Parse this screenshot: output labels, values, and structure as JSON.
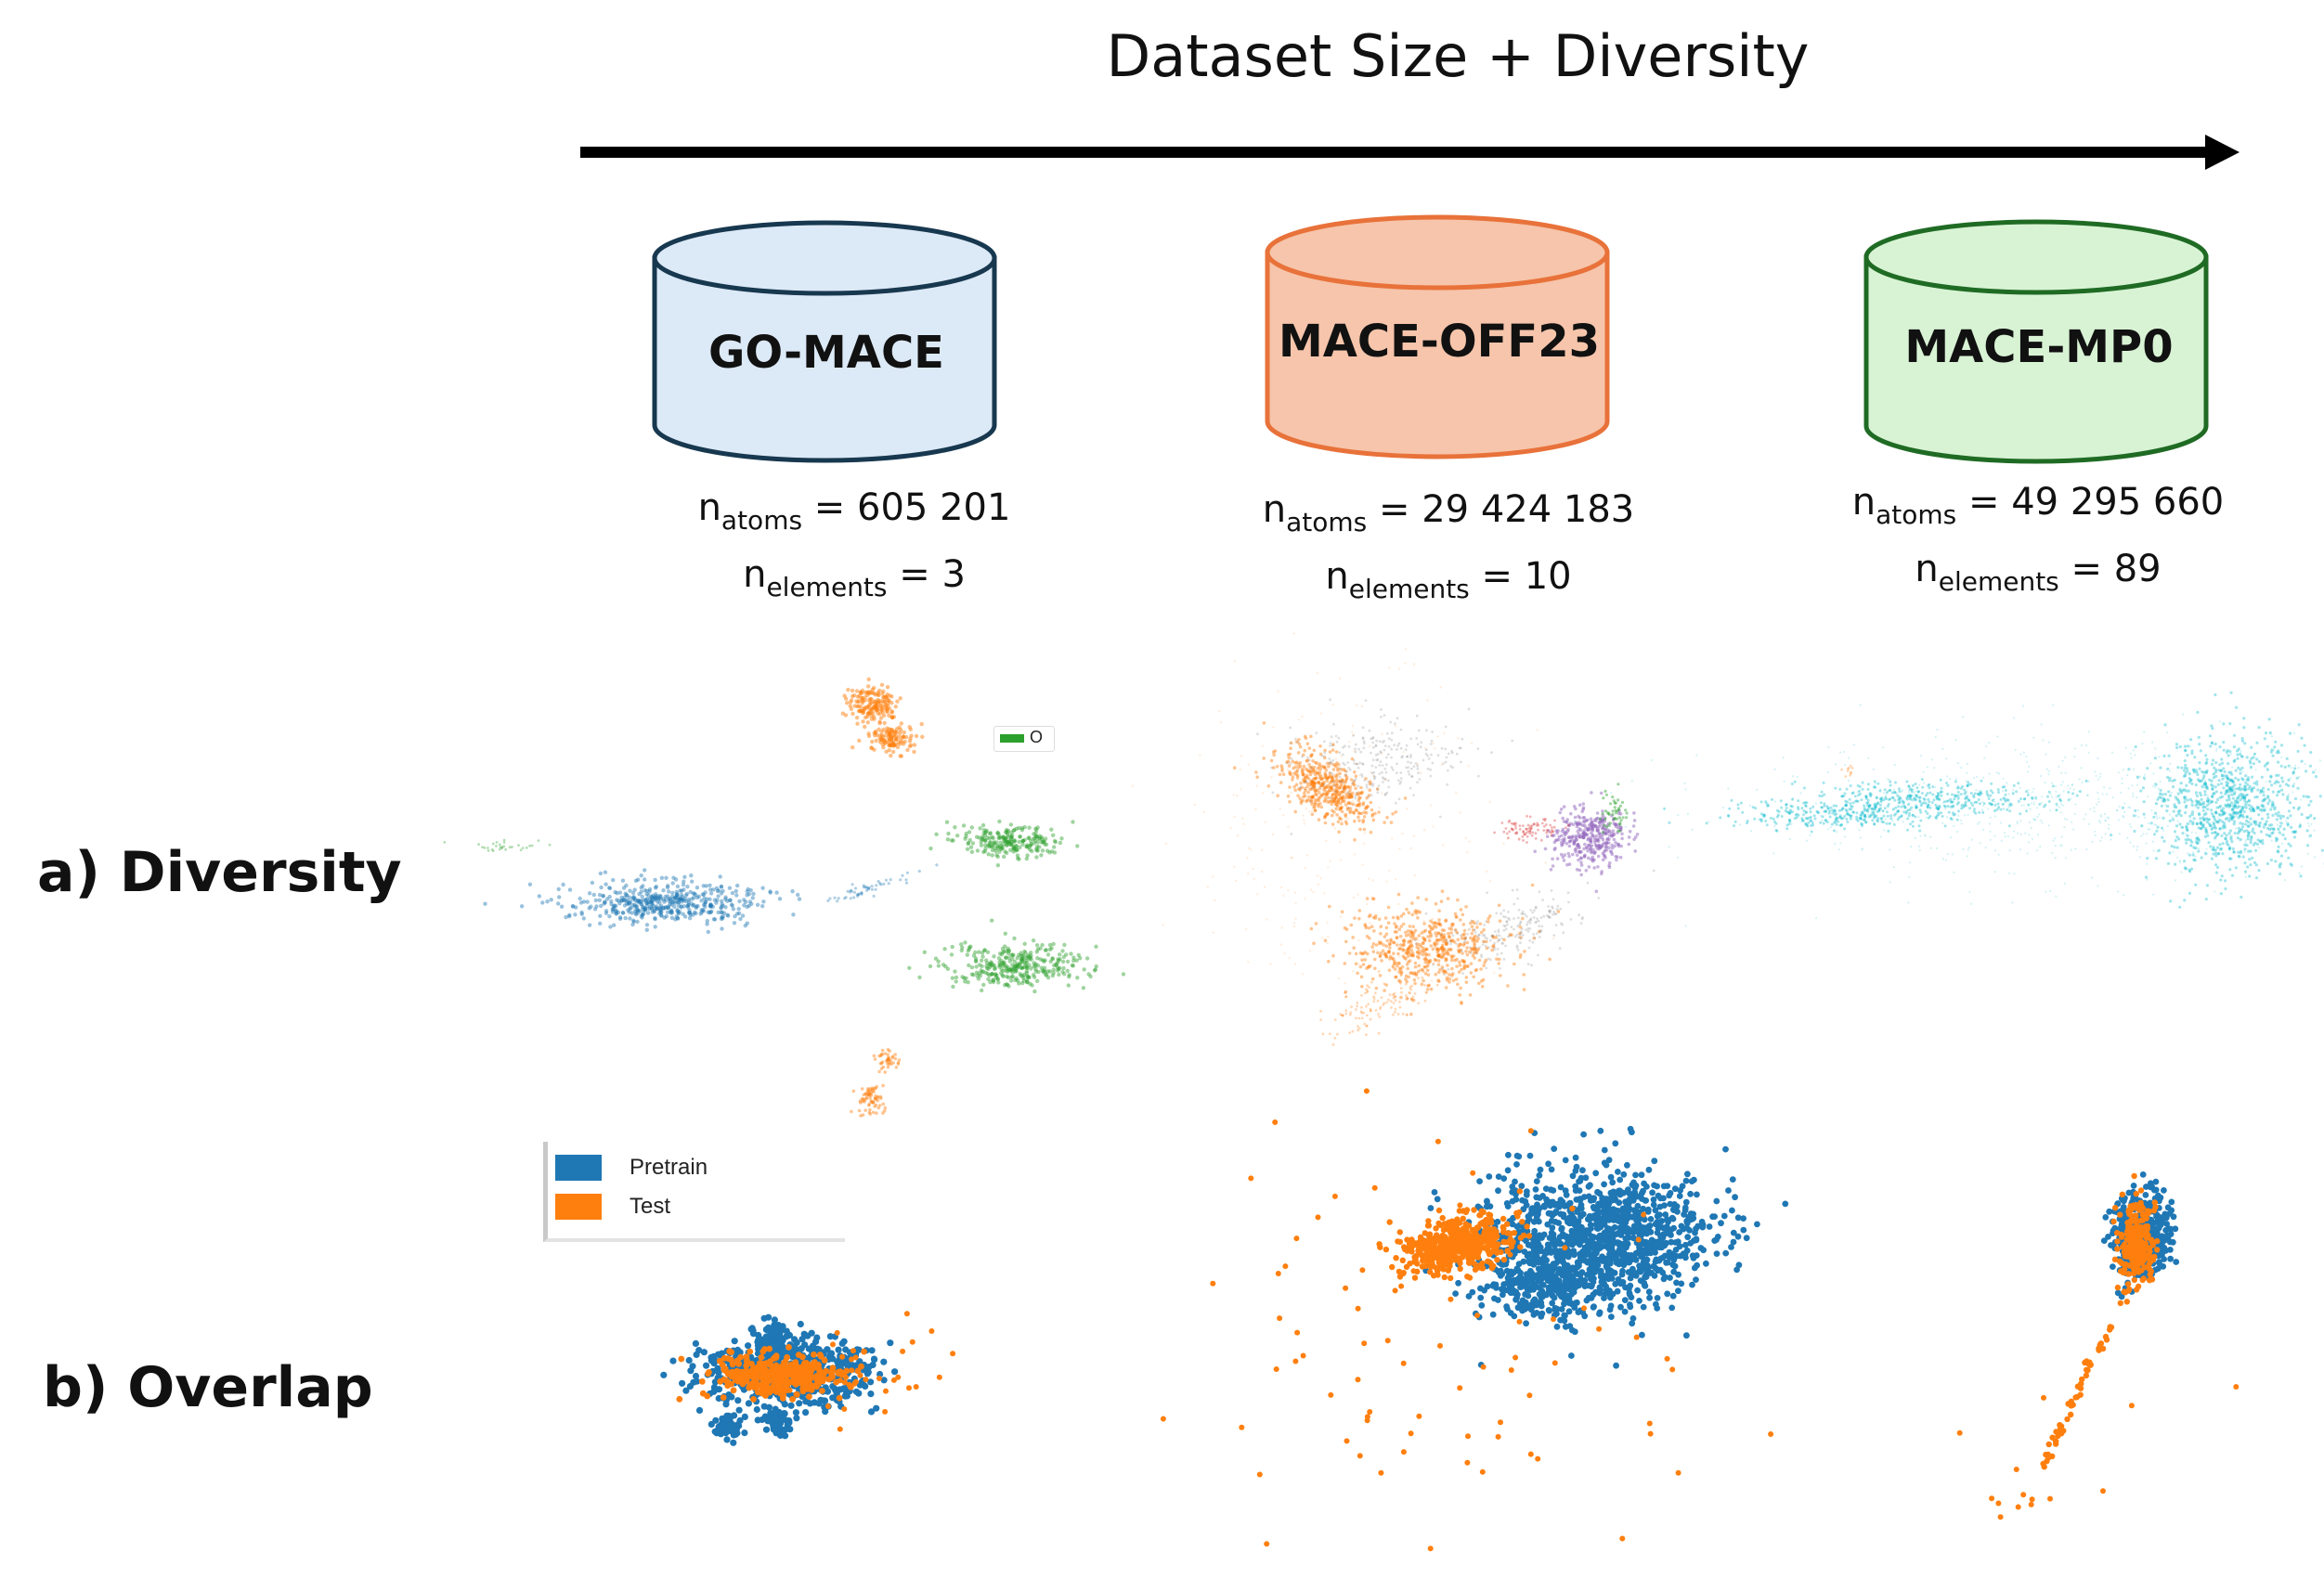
{
  "title": "Dataset Size + Diversity",
  "datasets": [
    {
      "name": "GO-MACE",
      "fill": "#dce9f6",
      "stroke": "#17384f",
      "n_atoms": "605 201",
      "n_elements": "3"
    },
    {
      "name": "MACE-OFF23",
      "fill": "#f6c5ab",
      "stroke": "#e8723a",
      "n_atoms": "29 424 183",
      "n_elements": "10"
    },
    {
      "name": "MACE-MP0",
      "fill": "#d8f3d4",
      "stroke": "#1f6b24",
      "n_atoms": "49 295 660",
      "n_elements": "89"
    }
  ],
  "stat_labels": {
    "n": "n",
    "atoms_sub": "atoms",
    "elements_sub": "elements",
    "eq": " = "
  },
  "rows": {
    "diversity": "a) Diversity",
    "overlap": "b) Overlap"
  },
  "legend": {
    "pretrain": "Pretrain",
    "test": "Test"
  },
  "mini_legend": {
    "label": "O"
  },
  "colors": {
    "pretrain": "#1f77b4",
    "test": "#ff7f0e",
    "green": "#2ca02c",
    "purple": "#9467bd",
    "cyan": "#17becf",
    "gray": "#7f7f7f",
    "red": "#d62728",
    "arrow": "#000000"
  }
}
